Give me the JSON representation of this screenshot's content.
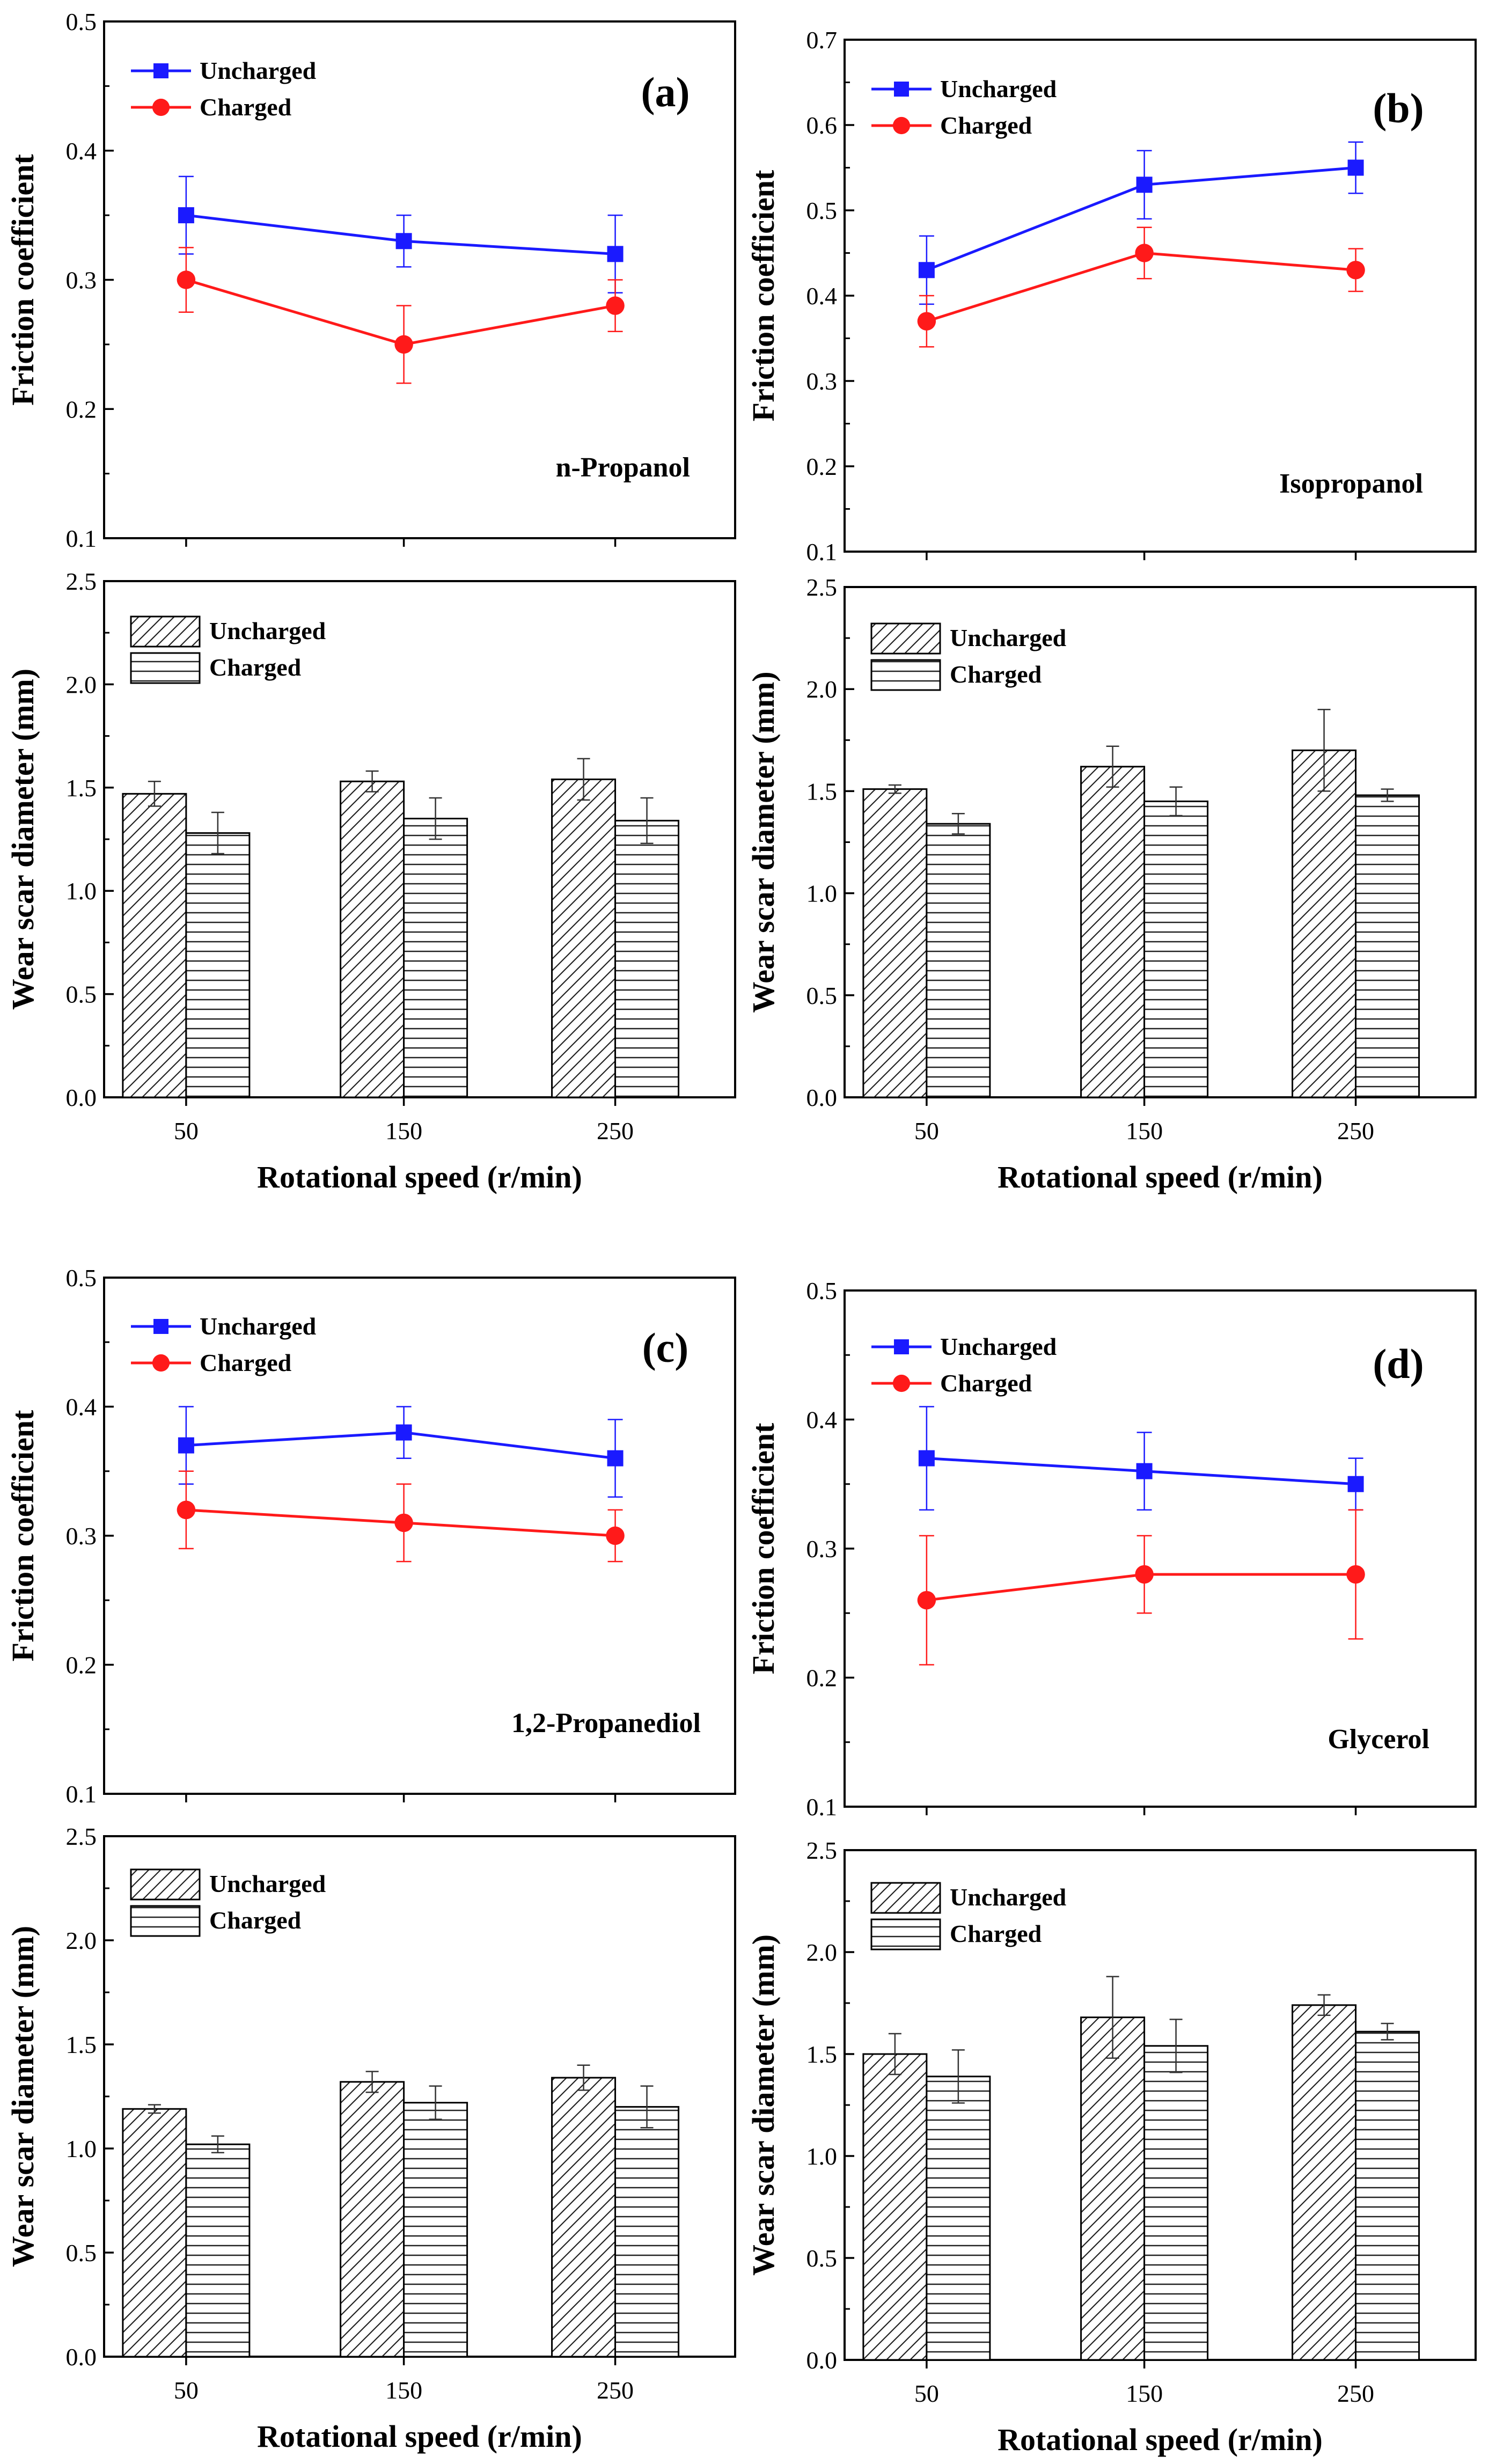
{
  "chart_data": [
    {
      "panel": "a",
      "solvent": "n-Propanol",
      "x_categories": [
        "50",
        "150",
        "250"
      ],
      "xlabel": "Rotational speed (r/min)",
      "friction": {
        "type": "line",
        "ylabel": "Friction coefficient",
        "ylim": [
          0.1,
          0.5
        ],
        "yticks": [
          "0.1",
          "0.2",
          "0.3",
          "0.4",
          "0.5"
        ],
        "series": [
          {
            "name": "Uncharged",
            "color": "#1a1aff",
            "marker": "square",
            "values": [
              0.35,
              0.33,
              0.32
            ],
            "errors": [
              0.03,
              0.02,
              0.03
            ]
          },
          {
            "name": "Charged",
            "color": "#ff1a1a",
            "marker": "circle",
            "values": [
              0.3,
              0.25,
              0.28
            ],
            "errors": [
              0.025,
              0.03,
              0.02
            ]
          }
        ]
      },
      "wear": {
        "type": "bar",
        "ylabel": "Wear scar diameter (mm)",
        "ylim": [
          0.0,
          2.5
        ],
        "yticks": [
          "0.0",
          "0.5",
          "1.0",
          "1.5",
          "2.0",
          "2.5"
        ],
        "series": [
          {
            "name": "Uncharged",
            "pattern": "diagonal",
            "values": [
              1.47,
              1.53,
              1.54
            ],
            "errors": [
              0.06,
              0.05,
              0.1
            ]
          },
          {
            "name": "Charged",
            "pattern": "horizontal",
            "values": [
              1.28,
              1.35,
              1.34
            ],
            "errors": [
              0.1,
              0.1,
              0.11
            ]
          }
        ]
      }
    },
    {
      "panel": "b",
      "solvent": "Isopropanol",
      "x_categories": [
        "50",
        "150",
        "250"
      ],
      "xlabel": "Rotational speed (r/min)",
      "friction": {
        "type": "line",
        "ylabel": "Friction coefficient",
        "ylim": [
          0.1,
          0.7
        ],
        "yticks": [
          "0.1",
          "0.2",
          "0.3",
          "0.4",
          "0.5",
          "0.6",
          "0.7"
        ],
        "series": [
          {
            "name": "Uncharged",
            "color": "#1a1aff",
            "marker": "square",
            "values": [
              0.43,
              0.53,
              0.55
            ],
            "errors": [
              0.04,
              0.04,
              0.03
            ]
          },
          {
            "name": "Charged",
            "color": "#ff1a1a",
            "marker": "circle",
            "values": [
              0.37,
              0.45,
              0.43
            ],
            "errors": [
              0.03,
              0.03,
              0.025
            ]
          }
        ]
      },
      "wear": {
        "type": "bar",
        "ylabel": "Wear scar diameter (mm)",
        "ylim": [
          0.0,
          2.5
        ],
        "yticks": [
          "0.0",
          "0.5",
          "1.0",
          "1.5",
          "2.0",
          "2.5"
        ],
        "series": [
          {
            "name": "Uncharged",
            "pattern": "diagonal",
            "values": [
              1.51,
              1.62,
              1.7
            ],
            "errors": [
              0.02,
              0.1,
              0.2
            ]
          },
          {
            "name": "Charged",
            "pattern": "horizontal",
            "values": [
              1.34,
              1.45,
              1.48
            ],
            "errors": [
              0.05,
              0.07,
              0.03
            ]
          }
        ]
      }
    },
    {
      "panel": "c",
      "solvent": "1,2-Propanediol",
      "x_categories": [
        "50",
        "150",
        "250"
      ],
      "xlabel": "Rotational speed (r/min)",
      "friction": {
        "type": "line",
        "ylabel": "Friction coefficient",
        "ylim": [
          0.1,
          0.5
        ],
        "yticks": [
          "0.1",
          "0.2",
          "0.3",
          "0.4",
          "0.5"
        ],
        "series": [
          {
            "name": "Uncharged",
            "color": "#1a1aff",
            "marker": "square",
            "values": [
              0.37,
              0.38,
              0.36
            ],
            "errors": [
              0.03,
              0.02,
              0.03
            ]
          },
          {
            "name": "Charged",
            "color": "#ff1a1a",
            "marker": "circle",
            "values": [
              0.32,
              0.31,
              0.3
            ],
            "errors": [
              0.03,
              0.03,
              0.02
            ]
          }
        ]
      },
      "wear": {
        "type": "bar",
        "ylabel": "Wear scar diameter (mm)",
        "ylim": [
          0.0,
          2.5
        ],
        "yticks": [
          "0.0",
          "0.5",
          "1.0",
          "1.5",
          "2.0",
          "2.5"
        ],
        "series": [
          {
            "name": "Uncharged",
            "pattern": "diagonal",
            "values": [
              1.19,
              1.32,
              1.34
            ],
            "errors": [
              0.02,
              0.05,
              0.06
            ]
          },
          {
            "name": "Charged",
            "pattern": "horizontal",
            "values": [
              1.02,
              1.22,
              1.2
            ],
            "errors": [
              0.04,
              0.08,
              0.1
            ]
          }
        ]
      }
    },
    {
      "panel": "d",
      "solvent": "Glycerol",
      "x_categories": [
        "50",
        "150",
        "250"
      ],
      "xlabel": "Rotational speed (r/min)",
      "friction": {
        "type": "line",
        "ylabel": "Friction coefficient",
        "ylim": [
          0.1,
          0.5
        ],
        "yticks": [
          "0.1",
          "0.2",
          "0.3",
          "0.4",
          "0.5"
        ],
        "series": [
          {
            "name": "Uncharged",
            "color": "#1a1aff",
            "marker": "square",
            "values": [
              0.37,
              0.36,
              0.35
            ],
            "errors": [
              0.04,
              0.03,
              0.02
            ]
          },
          {
            "name": "Charged",
            "color": "#ff1a1a",
            "marker": "circle",
            "values": [
              0.26,
              0.28,
              0.28
            ],
            "errors": [
              0.05,
              0.03,
              0.05
            ]
          }
        ]
      },
      "wear": {
        "type": "bar",
        "ylabel": "Wear scar diameter (mm)",
        "ylim": [
          0.0,
          2.5
        ],
        "yticks": [
          "0.0",
          "0.5",
          "1.0",
          "1.5",
          "2.0",
          "2.5"
        ],
        "series": [
          {
            "name": "Uncharged",
            "pattern": "diagonal",
            "values": [
              1.5,
              1.68,
              1.74
            ],
            "errors": [
              0.1,
              0.2,
              0.05
            ]
          },
          {
            "name": "Charged",
            "pattern": "horizontal",
            "values": [
              1.39,
              1.54,
              1.61
            ],
            "errors": [
              0.13,
              0.13,
              0.04
            ]
          }
        ]
      }
    }
  ],
  "labels": {
    "panel_tags": [
      "(a)",
      "(b)",
      "(c)",
      "(d)"
    ]
  }
}
